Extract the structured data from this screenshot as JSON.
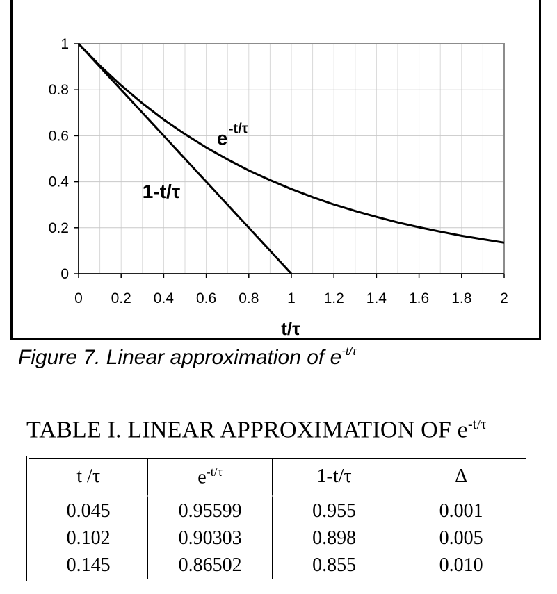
{
  "figure": {
    "caption_prefix": "Figure 7. Linear approximation of e",
    "caption_sup": "-t/τ"
  },
  "chart_data": {
    "type": "line",
    "xlabel": "t/τ",
    "xlim": [
      0,
      2
    ],
    "ylim": [
      0,
      1
    ],
    "x_ticks": [
      "0",
      "0.2",
      "0.4",
      "0.6",
      "0.8",
      "1",
      "1.2",
      "1.4",
      "1.6",
      "1.8",
      "2"
    ],
    "y_ticks": [
      "0",
      "0.2",
      "0.4",
      "0.6",
      "0.8",
      "1"
    ],
    "grid": true,
    "series": [
      {
        "name": "e",
        "name_sup": "-t/τ",
        "x": [
          0,
          0.1,
          0.2,
          0.3,
          0.4,
          0.5,
          0.6,
          0.7,
          0.8,
          0.9,
          1.0,
          1.1,
          1.2,
          1.3,
          1.4,
          1.5,
          1.6,
          1.7,
          1.8,
          1.9,
          2.0
        ],
        "y": [
          1.0,
          0.905,
          0.819,
          0.741,
          0.67,
          0.607,
          0.549,
          0.497,
          0.449,
          0.407,
          0.368,
          0.333,
          0.301,
          0.273,
          0.247,
          0.223,
          0.202,
          0.183,
          0.165,
          0.15,
          0.135
        ]
      },
      {
        "name": "1-t/τ",
        "x": [
          0,
          1.0
        ],
        "y": [
          1.0,
          0.0
        ]
      }
    ]
  },
  "table": {
    "title_prefix": "TABLE I. LINEAR APPROXIMATION OF e",
    "title_sup": "-t/τ",
    "headers": {
      "col1": "t /τ",
      "col2_base": "e",
      "col2_sup": "-t/τ",
      "col3": "1-t/τ",
      "col4": "Δ"
    },
    "rows": [
      [
        "0.045",
        "0.95599",
        "0.955",
        "0.001"
      ],
      [
        "0.102",
        "0.90303",
        "0.898",
        "0.005"
      ],
      [
        "0.145",
        "0.86502",
        "0.855",
        "0.010"
      ]
    ]
  }
}
